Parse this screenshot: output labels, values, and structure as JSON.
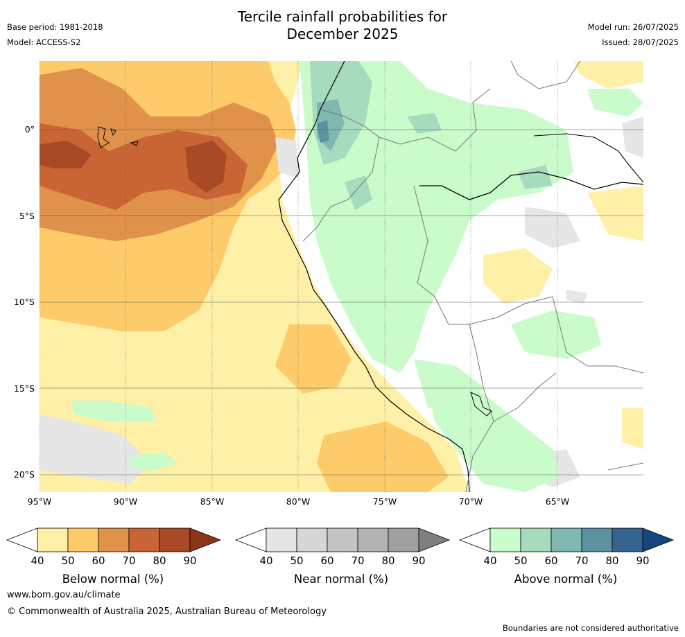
{
  "title_line1": "Tercile rainfall probabilities for",
  "title_line2": "December 2025",
  "meta": {
    "base_period": "Base period: 1981-2018",
    "model": "Model: ACCESS-S2",
    "model_run": "Model run: 26/07/2025",
    "issued": "Issued: 28/07/2025"
  },
  "lat_labels": [
    "0°",
    "5°S",
    "10°S",
    "15°S",
    "20°S"
  ],
  "lon_labels": [
    "95°W",
    "90°W",
    "85°W",
    "80°W",
    "75°W",
    "70°W",
    "65°W"
  ],
  "colorbars": [
    {
      "title": "Below normal (%)",
      "ticks": [
        "40",
        "50",
        "60",
        "70",
        "80",
        "90"
      ],
      "colors": [
        "#fff0a8",
        "#fdcb6a",
        "#e0924a",
        "#c96434",
        "#a84a26",
        "#8c3418"
      ]
    },
    {
      "title": "Near normal (%)",
      "ticks": [
        "40",
        "50",
        "60",
        "70",
        "80",
        "90"
      ],
      "colors": [
        "#e6e6e6",
        "#d6d6d6",
        "#c4c4c4",
        "#b3b3b3",
        "#a0a0a0",
        "#7f7f7f"
      ]
    },
    {
      "title": "Above normal (%)",
      "ticks": [
        "40",
        "50",
        "60",
        "70",
        "80",
        "90"
      ],
      "colors": [
        "#c9fbcb",
        "#a6dbbd",
        "#7fb8b0",
        "#5e919f",
        "#34648f",
        "#14477b"
      ]
    }
  ],
  "footer": {
    "website": "www.bom.gov.au/climate",
    "copyright": "© Commonwealth of Australia 2025, Australian Bureau of Meteorology",
    "disclaimer": "Boundaries are not considered authoritative"
  }
}
